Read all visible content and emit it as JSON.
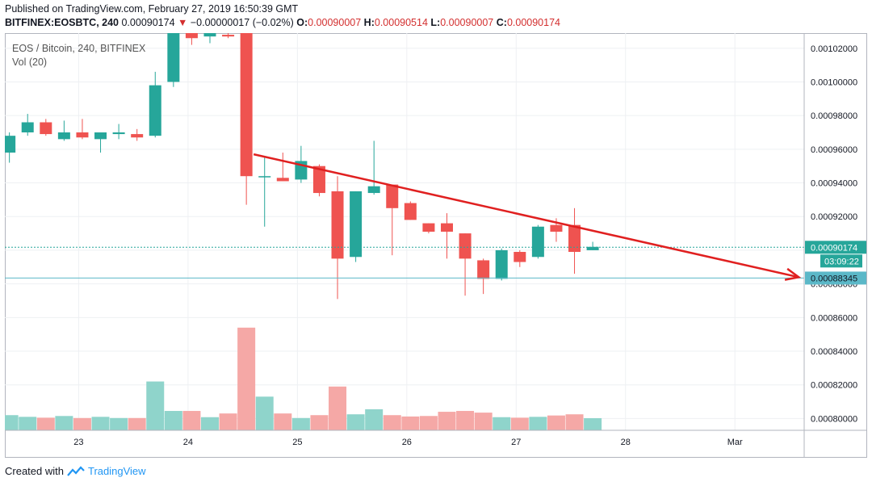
{
  "header": {
    "published": "Published on TradingView.com, February 27, 2019 16:50:39 GMT",
    "symbol": "BITFINEX:EOSBTC, 240",
    "last": "0.00090174",
    "change_arrow": "▼",
    "change": "−0.00000017 (−0.02%)",
    "o_label": "O:",
    "o_val": "0.00090007",
    "h_label": "H:",
    "h_val": "0.00090514",
    "l_label": "L:",
    "l_val": "0.00090007",
    "c_label": "C:",
    "c_val": "0.00090174"
  },
  "legend": {
    "name": "EOS / Bitcoin, 240, BITFINEX",
    "vol": "Vol (20)"
  },
  "footer": {
    "created": "Created with",
    "brand": "TradingView",
    "icon": "tradingview-logo-icon"
  },
  "colors": {
    "up": "#26a69a",
    "down": "#ef5350",
    "up_vol": "#8fd4cb",
    "down_vol": "#f5a8a6",
    "trendline": "#e02020",
    "price_line": "#26a69a",
    "target_line": "#5bb8c8",
    "grid": "#eef0f3"
  },
  "chart_data": {
    "type": "candlestick",
    "ylim": [
      0.000793,
      0.001029
    ],
    "y_ticks": [
      "0.00080000",
      "0.00082000",
      "0.00084000",
      "0.00086000",
      "0.00088000",
      "0.00090000",
      "0.00092000",
      "0.00094000",
      "0.00096000",
      "0.00098000",
      "0.00100000",
      "0.00102000"
    ],
    "x_ticks": [
      {
        "label": "23",
        "t": 3.8
      },
      {
        "label": "24",
        "t": 9.8
      },
      {
        "label": "25",
        "t": 15.8
      },
      {
        "label": "26",
        "t": 21.8
      },
      {
        "label": "27",
        "t": 27.8
      },
      {
        "label": "28",
        "t": 33.8
      },
      {
        "label": "Mar",
        "t": 39.8
      }
    ],
    "x_range": [
      -0.25,
      43.6
    ],
    "last_price_label": "0.00090174",
    "countdown_label": "03:09:22",
    "target_label": "0.00088345",
    "last_price": 0.00090174,
    "target_price": 0.00088345,
    "candles": [
      {
        "o": 0.000958,
        "h": 0.00097,
        "l": 0.000952,
        "c": 0.000968,
        "v": 0.000802
      },
      {
        "o": 0.00097,
        "h": 0.000981,
        "l": 0.000968,
        "c": 0.000976,
        "v": 0.000801
      },
      {
        "o": 0.000976,
        "h": 0.000978,
        "l": 0.000968,
        "c": 0.000969,
        "v": 0.0008005
      },
      {
        "o": 0.000966,
        "h": 0.000977,
        "l": 0.000965,
        "c": 0.00097,
        "v": 0.0008015
      },
      {
        "o": 0.00097,
        "h": 0.000978,
        "l": 0.000966,
        "c": 0.000967,
        "v": 0.0008003
      },
      {
        "o": 0.000966,
        "h": 0.00097,
        "l": 0.000958,
        "c": 0.00097,
        "v": 0.000801
      },
      {
        "o": 0.000969,
        "h": 0.000975,
        "l": 0.000966,
        "c": 0.00097,
        "v": 0.0008003
      },
      {
        "o": 0.000969,
        "h": 0.000972,
        "l": 0.000965,
        "c": 0.000967,
        "v": 0.0008003
      },
      {
        "o": 0.000968,
        "h": 0.001006,
        "l": 0.000967,
        "c": 0.000998,
        "v": 0.000822
      },
      {
        "o": 0.001,
        "h": 0.001029,
        "l": 0.000997,
        "c": 0.001029,
        "v": 0.0008045
      },
      {
        "o": 0.001029,
        "h": 0.001029,
        "l": 0.001022,
        "c": 0.001026,
        "v": 0.0008045
      },
      {
        "o": 0.001027,
        "h": 0.001029,
        "l": 0.001023,
        "c": 0.001029,
        "v": 0.0008008
      },
      {
        "o": 0.001028,
        "h": 0.001029,
        "l": 0.001026,
        "c": 0.001027,
        "v": 0.000803
      },
      {
        "o": 0.001029,
        "h": 0.001029,
        "l": 0.000927,
        "c": 0.000944,
        "v": 0.000854
      },
      {
        "o": 0.000944,
        "h": 0.000955,
        "l": 0.000914,
        "c": 0.000944,
        "v": 0.000813
      },
      {
        "o": 0.000943,
        "h": 0.000958,
        "l": 0.000941,
        "c": 0.000941,
        "v": 0.000803
      },
      {
        "o": 0.000942,
        "h": 0.000962,
        "l": 0.00094,
        "c": 0.000953,
        "v": 0.0008003
      },
      {
        "o": 0.00095,
        "h": 0.000951,
        "l": 0.000932,
        "c": 0.000934,
        "v": 0.000802
      },
      {
        "o": 0.000935,
        "h": 0.000944,
        "l": 0.000871,
        "c": 0.000895,
        "v": 0.000819
      },
      {
        "o": 0.000896,
        "h": 0.000935,
        "l": 0.000893,
        "c": 0.000935,
        "v": 0.0008025
      },
      {
        "o": 0.000934,
        "h": 0.000965,
        "l": 0.000933,
        "c": 0.000938,
        "v": 0.0008055
      },
      {
        "o": 0.000939,
        "h": 0.000939,
        "l": 0.000897,
        "c": 0.000925,
        "v": 0.000802
      },
      {
        "o": 0.000928,
        "h": 0.000929,
        "l": 0.000918,
        "c": 0.000918,
        "v": 0.0008012
      },
      {
        "o": 0.000916,
        "h": 0.000916,
        "l": 0.00091,
        "c": 0.000911,
        "v": 0.0008015
      },
      {
        "o": 0.000916,
        "h": 0.000922,
        "l": 0.000895,
        "c": 0.000911,
        "v": 0.000804
      },
      {
        "o": 0.00091,
        "h": 0.00091,
        "l": 0.000873,
        "c": 0.000895,
        "v": 0.0008045
      },
      {
        "o": 0.000894,
        "h": 0.000895,
        "l": 0.000874,
        "c": 0.000883,
        "v": 0.0008035
      },
      {
        "o": 0.000883,
        "h": 0.000901,
        "l": 0.000882,
        "c": 0.0009,
        "v": 0.0008008
      },
      {
        "o": 0.000899,
        "h": 0.0009,
        "l": 0.00089,
        "c": 0.000893,
        "v": 0.0008005
      },
      {
        "o": 0.000896,
        "h": 0.000915,
        "l": 0.000895,
        "c": 0.000914,
        "v": 0.000801
      },
      {
        "o": 0.000915,
        "h": 0.000919,
        "l": 0.000905,
        "c": 0.000911,
        "v": 0.0008018
      },
      {
        "o": 0.000915,
        "h": 0.000925,
        "l": 0.000886,
        "c": 0.000899,
        "v": 0.0008025
      },
      {
        "o": 0.0009,
        "h": 0.000905,
        "l": 0.0009,
        "c": 0.000902,
        "v": 0.0008002
      }
    ],
    "trendline": {
      "from": {
        "t": 13.4,
        "p": 0.000957
      },
      "to": {
        "t": 43.3,
        "p": 0.000884
      }
    }
  }
}
